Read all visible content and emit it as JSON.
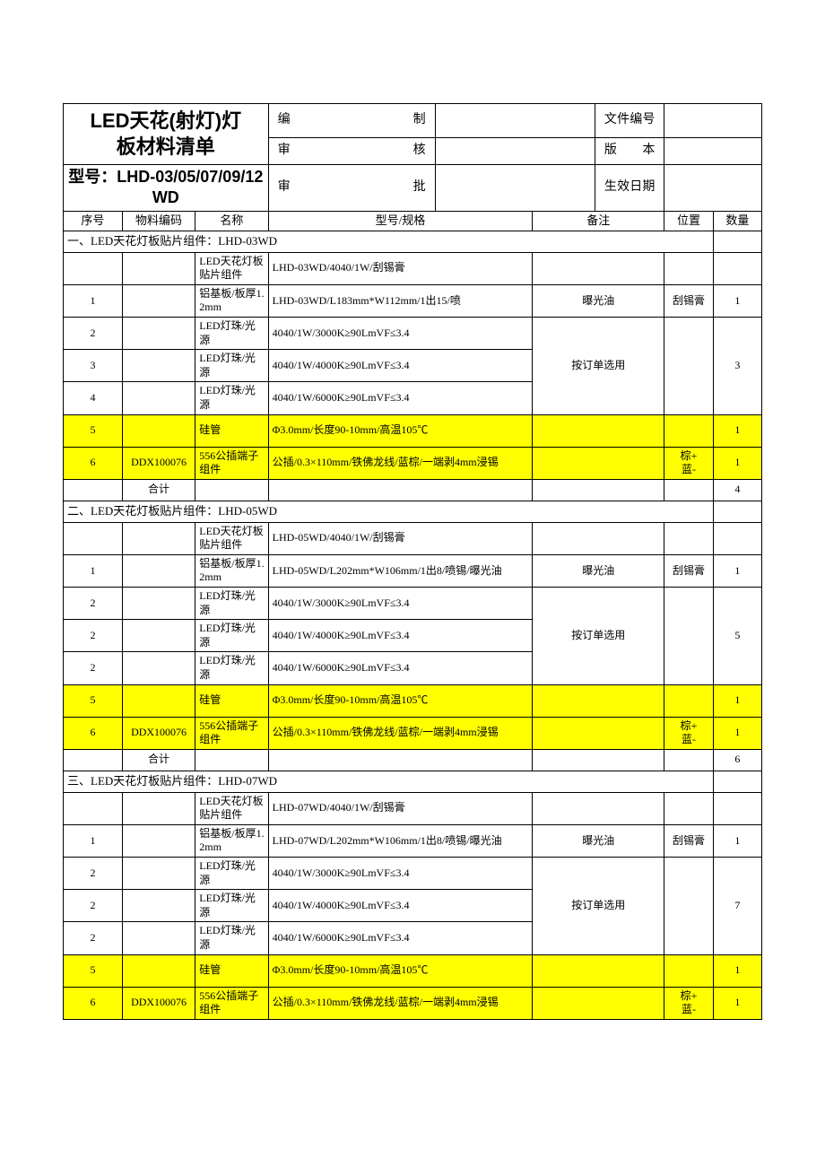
{
  "header": {
    "title_line1": "LED天花(射灯)灯",
    "title_line2": "板材料清单",
    "model_label": "型号：LHD-03/05/07/09/12WD",
    "meta_prep": "编　　制",
    "meta_review": "审　　核",
    "meta_approve": "审　　批",
    "meta_docno": "文件编号",
    "meta_version": "版　　本",
    "meta_effdate": "生效日期"
  },
  "columns": {
    "seq": "序号",
    "code": "物料编码",
    "name": "名称",
    "spec": "型号/规格",
    "remark": "备注",
    "pos": "位置",
    "qty": "数量"
  },
  "sections": [
    {
      "title": "一、LED天花灯板贴片组件：LHD-03WD",
      "intro_name": "LED天花灯板贴片组件",
      "intro_spec": "LHD-03WD/4040/1W/刮锡膏",
      "rows": [
        {
          "seq": "1",
          "code": "",
          "name": "铝基板/板厚1.2mm",
          "spec": "LHD-03WD/L183mm*W112mm/1出15/喷",
          "remark": "曝光油",
          "pos": "刮锡膏",
          "qty": "1",
          "hl": false,
          "remark_merge": false
        },
        {
          "seq": "2",
          "code": "",
          "name": "LED灯珠/光源",
          "spec": "4040/1W/3000K≥90LmVF≤3.4",
          "remark": "按订单选用",
          "pos": "",
          "qty": "3",
          "hl": false,
          "remark_start": true,
          "remark_span": 3,
          "qty_span": 3
        },
        {
          "seq": "3",
          "code": "",
          "name": "LED灯珠/光源",
          "spec": "4040/1W/4000K≥90LmVF≤3.4",
          "hl": false,
          "remark_merge": true
        },
        {
          "seq": "4",
          "code": "",
          "name": "LED灯珠/光源",
          "spec": "4040/1W/6000K≥90LmVF≤3.4",
          "hl": false,
          "remark_merge": true
        },
        {
          "seq": "5",
          "code": "",
          "name": "硅管",
          "spec": "Φ3.0mm/长度90-10mm/高温105℃",
          "remark": "",
          "pos": "",
          "qty": "1",
          "hl": true
        },
        {
          "seq": "6",
          "code": "DDX100076",
          "name": "556公插端子组件",
          "spec": "公插/0.3×110mm/铁佛龙线/蓝棕/一端剥4mm浸锡",
          "remark": "",
          "pos": "棕+　蓝-",
          "qty": "1",
          "hl": true
        }
      ],
      "sum_label": "合计",
      "sum_qty": "4"
    },
    {
      "title": "二、LED天花灯板贴片组件：LHD-05WD",
      "intro_name": "LED天花灯板贴片组件",
      "intro_spec": "LHD-05WD/4040/1W/刮锡膏",
      "rows": [
        {
          "seq": "1",
          "code": "",
          "name": "铝基板/板厚1.2mm",
          "spec": "LHD-05WD/L202mm*W106mm/1出8/喷锡/曝光油",
          "remark": "曝光油",
          "pos": "刮锡膏",
          "qty": "1",
          "hl": false
        },
        {
          "seq": "2",
          "code": "",
          "name": "LED灯珠/光源",
          "spec": "4040/1W/3000K≥90LmVF≤3.4",
          "remark": "按订单选用",
          "pos": "",
          "qty": "5",
          "hl": false,
          "remark_start": true,
          "remark_span": 3,
          "qty_span": 3
        },
        {
          "seq": "2",
          "code": "",
          "name": "LED灯珠/光源",
          "spec": "4040/1W/4000K≥90LmVF≤3.4",
          "hl": false,
          "remark_merge": true
        },
        {
          "seq": "2",
          "code": "",
          "name": "LED灯珠/光源",
          "spec": "4040/1W/6000K≥90LmVF≤3.4",
          "hl": false,
          "remark_merge": true
        },
        {
          "seq": "5",
          "code": "",
          "name": "硅管",
          "spec": "Φ3.0mm/长度90-10mm/高温105℃",
          "remark": "",
          "pos": "",
          "qty": "1",
          "hl": true
        },
        {
          "seq": "6",
          "code": "DDX100076",
          "name": "556公插端子组件",
          "spec": "公插/0.3×110mm/铁佛龙线/蓝棕/一端剥4mm浸锡",
          "remark": "",
          "pos": "棕+　蓝-",
          "qty": "1",
          "hl": true
        }
      ],
      "sum_label": "合计",
      "sum_qty": "6"
    },
    {
      "title": "三、LED天花灯板贴片组件：LHD-07WD",
      "intro_name": "LED天花灯板贴片组件",
      "intro_spec": "LHD-07WD/4040/1W/刮锡膏",
      "rows": [
        {
          "seq": "1",
          "code": "",
          "name": "铝基板/板厚1.2mm",
          "spec": "LHD-07WD/L202mm*W106mm/1出8/喷锡/曝光油",
          "remark": "曝光油",
          "pos": "刮锡膏",
          "qty": "1",
          "hl": false
        },
        {
          "seq": "2",
          "code": "",
          "name": "LED灯珠/光源",
          "spec": "4040/1W/3000K≥90LmVF≤3.4",
          "remark": "按订单选用",
          "pos": "",
          "qty": "7",
          "hl": false,
          "remark_start": true,
          "remark_span": 3,
          "qty_span": 3
        },
        {
          "seq": "2",
          "code": "",
          "name": "LED灯珠/光源",
          "spec": "4040/1W/4000K≥90LmVF≤3.4",
          "hl": false,
          "remark_merge": true
        },
        {
          "seq": "2",
          "code": "",
          "name": "LED灯珠/光源",
          "spec": "4040/1W/6000K≥90LmVF≤3.4",
          "hl": false,
          "remark_merge": true
        },
        {
          "seq": "5",
          "code": "",
          "name": "硅管",
          "spec": "Φ3.0mm/长度90-10mm/高温105℃",
          "remark": "",
          "pos": "",
          "qty": "1",
          "hl": true
        },
        {
          "seq": "6",
          "code": "DDX100076",
          "name": "556公插端子组件",
          "spec": "公插/0.3×110mm/铁佛龙线/蓝棕/一端剥4mm浸锡",
          "remark": "",
          "pos": "棕+　蓝-",
          "qty": "1",
          "hl": true
        }
      ],
      "no_sum": true
    }
  ],
  "style": {
    "highlight_color": "#ffff00",
    "border_color": "#000000",
    "col_widths_pct": [
      8.5,
      10.5,
      10.5,
      24,
      14,
      9,
      10,
      7,
      7
    ]
  }
}
